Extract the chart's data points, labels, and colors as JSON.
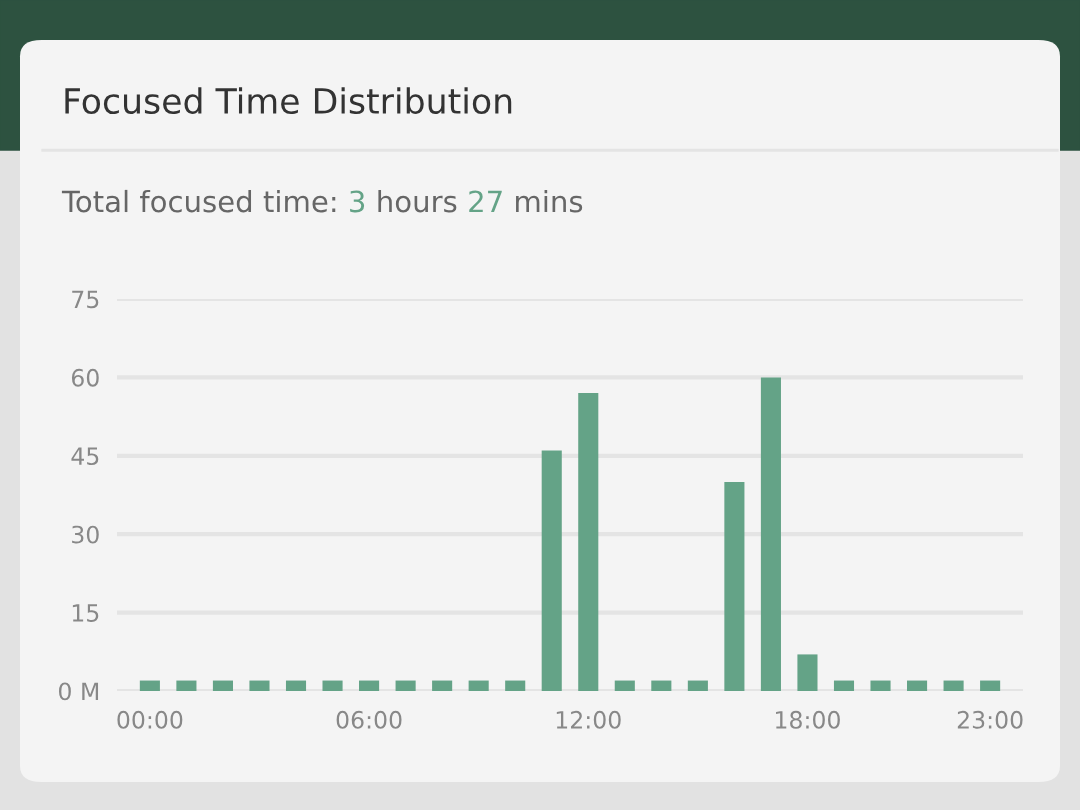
{
  "chart_data": {
    "type": "bar",
    "title": "Focused Time Distribution",
    "subtitle": "Total focused time: 3 hours 27 mins",
    "categories": [
      "00:00",
      null,
      null,
      null,
      null,
      null,
      "06:00",
      null,
      null,
      null,
      null,
      null,
      "12:00",
      null,
      null,
      null,
      null,
      null,
      "18:00",
      null,
      null,
      null,
      null,
      "23:00"
    ],
    "values": [
      2,
      2,
      2,
      2,
      2,
      2,
      2,
      2,
      2,
      2,
      2,
      46,
      57,
      2,
      2,
      2,
      40,
      60,
      7,
      2,
      2,
      2,
      2,
      2
    ],
    "color": "#64a387",
    "ylim": [
      0,
      75
    ],
    "yticks": [
      {
        "value": 0,
        "label": "0 M"
      },
      15,
      30,
      45,
      60,
      75
    ],
    "grid": "y"
  }
}
